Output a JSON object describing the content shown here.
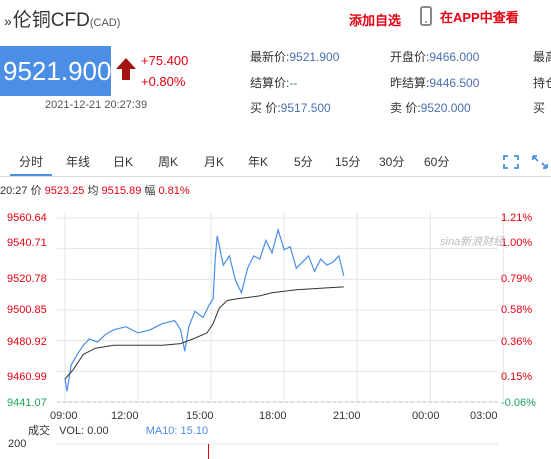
{
  "header": {
    "title": "伦铜CFD",
    "title_prefix": "»",
    "currency": "(CAD)",
    "add_favorite": "添加自选",
    "app_link": "在APP中查看"
  },
  "quote": {
    "price": "9521.900",
    "change": "+75.400",
    "change_pct": "+0.80%",
    "timestamp": "2021-12-21 20:27:39",
    "direction": "up"
  },
  "fields": [
    {
      "label": "最新价:",
      "value": "9521.900"
    },
    {
      "label": "结算价:",
      "value": "--"
    },
    {
      "label": "买  价:",
      "value": "9517.500"
    },
    {
      "label": "开盘价:",
      "value": "9466.000"
    },
    {
      "label": "昨结算:",
      "value": "9446.500"
    },
    {
      "label": "卖  价:",
      "value": "9520.000"
    },
    {
      "label": "最高",
      "value": ""
    },
    {
      "label": "持仓",
      "value": ""
    },
    {
      "label": "买",
      "value": ""
    }
  ],
  "tabs": [
    "分时",
    "年线",
    "日K",
    "周K",
    "月K",
    "年K",
    "5分",
    "15分",
    "30分",
    "60分"
  ],
  "active_tab": "分时",
  "info_line": {
    "time": "20:27",
    "price_label": "价",
    "price": "9523.25",
    "avg_label": "均",
    "avg": "9515.89",
    "range_label": "幅",
    "range": "0.81%"
  },
  "watermark": "sina新浪财经",
  "volume": {
    "label": "成交",
    "vol_label": "VOL:",
    "vol_value": "0.00",
    "ma_label": "MA10:",
    "ma_value": "15.10",
    "max": "200"
  },
  "colors": {
    "accent": "#4a8ee6",
    "up": "#e60012",
    "down": "#1aa35a",
    "avg_line": "#333333"
  },
  "chart_data": {
    "type": "line",
    "title": "",
    "y_ticks": [
      "9560.64",
      "9540.71",
      "9520.78",
      "9500.85",
      "9480.92",
      "9460.99",
      "9441.07"
    ],
    "y_pct_ticks": [
      "1.21%",
      "1.00%",
      "0.79%",
      "0.58%",
      "0.36%",
      "0.15%",
      "-0.06%"
    ],
    "x_ticks": [
      "09:00",
      "12:00",
      "15:00",
      "18:00",
      "21:00",
      "00:00",
      "03:00"
    ],
    "ylim": [
      9441.07,
      9560.64
    ],
    "series": [
      {
        "values": [
          [
            "09:00",
            9456
          ],
          [
            "09:05",
            9448
          ],
          [
            "09:15",
            9465
          ],
          [
            "09:30",
            9472
          ],
          [
            "09:45",
            9478
          ],
          [
            "10:00",
            9482
          ],
          [
            "10:20",
            9480
          ],
          [
            "10:40",
            9485
          ],
          [
            "11:00",
            9488
          ],
          [
            "11:30",
            9490
          ],
          [
            "12:00",
            9486
          ],
          [
            "12:30",
            9488
          ],
          [
            "13:00",
            9492
          ],
          [
            "13:30",
            9494
          ],
          [
            "13:45",
            9488
          ],
          [
            "13:55",
            9474
          ],
          [
            "14:05",
            9490
          ],
          [
            "14:20",
            9500
          ],
          [
            "14:40",
            9496
          ],
          [
            "14:55",
            9504
          ],
          [
            "15:05",
            9508
          ],
          [
            "15:10",
            9534
          ],
          [
            "15:15",
            9549
          ],
          [
            "15:30",
            9530
          ],
          [
            "15:45",
            9536
          ],
          [
            "16:00",
            9520
          ],
          [
            "16:15",
            9512
          ],
          [
            "16:30",
            9528
          ],
          [
            "16:45",
            9536
          ],
          [
            "17:00",
            9534
          ],
          [
            "17:15",
            9546
          ],
          [
            "17:30",
            9538
          ],
          [
            "17:45",
            9553
          ],
          [
            "18:00",
            9540
          ],
          [
            "18:15",
            9542
          ],
          [
            "18:30",
            9528
          ],
          [
            "18:45",
            9532
          ],
          [
            "19:00",
            9536
          ],
          [
            "19:15",
            9526
          ],
          [
            "19:30",
            9534
          ],
          [
            "19:45",
            9530
          ],
          [
            "20:00",
            9532
          ],
          [
            "20:15",
            9536
          ],
          [
            "20:27",
            9523
          ]
        ]
      },
      {
        "values": [
          [
            "09:00",
            9456
          ],
          [
            "09:20",
            9462
          ],
          [
            "09:45",
            9472
          ],
          [
            "10:15",
            9476
          ],
          [
            "11:00",
            9478
          ],
          [
            "12:00",
            9478
          ],
          [
            "13:00",
            9478
          ],
          [
            "13:45",
            9479
          ],
          [
            "14:15",
            9482
          ],
          [
            "14:50",
            9486
          ],
          [
            "15:05",
            9492
          ],
          [
            "15:20",
            9502
          ],
          [
            "15:40",
            9507
          ],
          [
            "16:00",
            9508
          ],
          [
            "16:30",
            9509
          ],
          [
            "17:00",
            9510
          ],
          [
            "17:30",
            9512
          ],
          [
            "18:00",
            9513
          ],
          [
            "18:30",
            9514
          ],
          [
            "19:00",
            9514.5
          ],
          [
            "19:30",
            9515
          ],
          [
            "20:00",
            9515.5
          ],
          [
            "20:27",
            9515.89
          ]
        ]
      }
    ],
    "grid": true
  }
}
